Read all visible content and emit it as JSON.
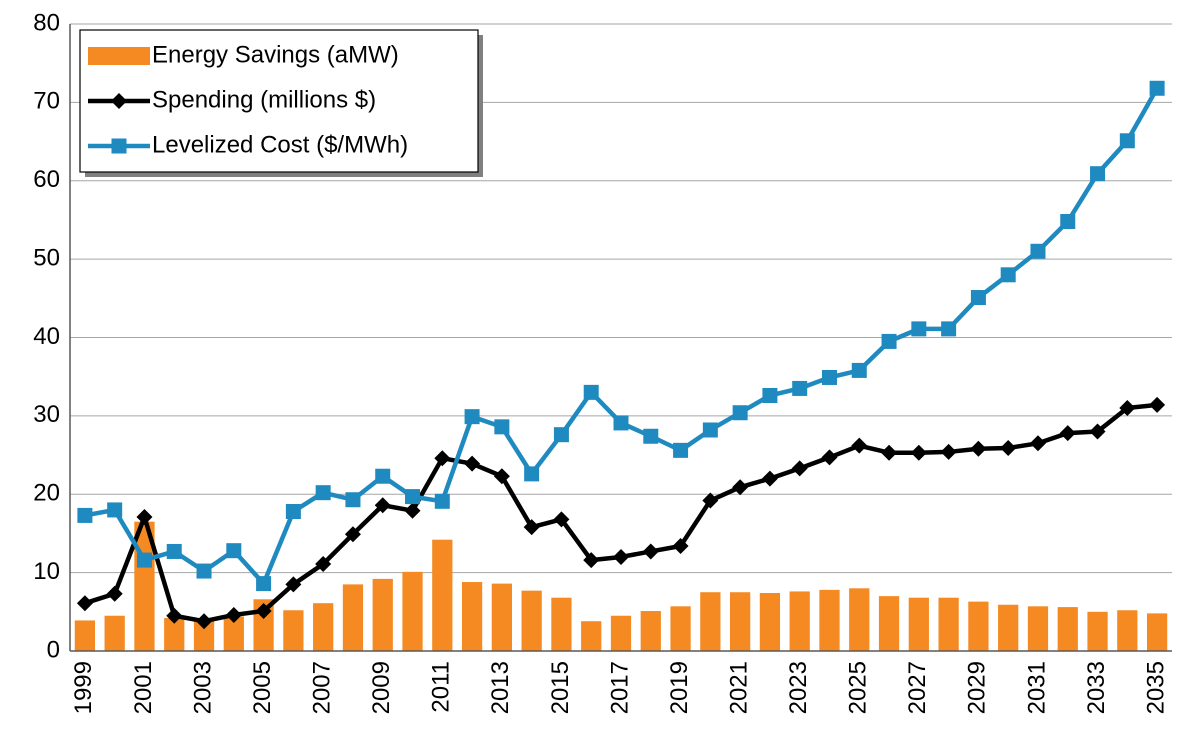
{
  "chart_data": {
    "type": "combo",
    "categories": [
      "1999",
      null,
      "2001",
      null,
      "2003",
      null,
      "2005",
      null,
      "2007",
      null,
      "2009",
      null,
      "2011",
      null,
      "2013",
      null,
      "2015",
      null,
      "2017",
      null,
      "2019",
      null,
      "2021",
      null,
      "2023",
      null,
      "2025",
      null,
      "2027",
      null,
      "2029",
      null,
      "2031",
      null,
      "2033",
      null,
      "2035"
    ],
    "series": [
      {
        "name": "Energy Savings (aMW)",
        "kind": "bar",
        "color": "#f58a23",
        "values": [
          3.9,
          4.5,
          16.5,
          4.2,
          3.8,
          4.4,
          6.6,
          5.2,
          6.1,
          8.5,
          9.2,
          10.1,
          14.2,
          8.8,
          8.6,
          7.7,
          6.8,
          3.8,
          4.5,
          5.1,
          5.7,
          7.5,
          7.5,
          7.4,
          7.6,
          7.8,
          8.0,
          7.0,
          6.8,
          6.8,
          6.3,
          5.9,
          5.7,
          5.6,
          5.0,
          5.2,
          4.8
        ]
      },
      {
        "name": "Spending (millions $)",
        "kind": "line",
        "marker": "diamond",
        "color": "#000000",
        "values": [
          6.1,
          7.3,
          17.1,
          4.5,
          3.8,
          4.6,
          5.1,
          8.5,
          11.1,
          14.9,
          18.6,
          17.9,
          24.6,
          23.9,
          22.3,
          15.8,
          16.8,
          11.6,
          12.0,
          12.7,
          13.4,
          19.2,
          20.9,
          22.0,
          23.3,
          24.7,
          26.2,
          25.3,
          25.3,
          25.4,
          25.8,
          25.9,
          26.5,
          27.8,
          28.0,
          31.0,
          31.4
        ]
      },
      {
        "name": "Levelized Cost ($/MWh)",
        "kind": "line",
        "marker": "square",
        "color": "#1f8ac0",
        "values": [
          17.3,
          18.0,
          11.6,
          12.7,
          10.2,
          12.8,
          8.6,
          17.8,
          20.2,
          19.3,
          22.3,
          19.7,
          19.1,
          29.9,
          28.6,
          22.6,
          27.6,
          33.0,
          29.1,
          27.4,
          25.6,
          28.2,
          30.4,
          32.6,
          33.5,
          34.9,
          35.8,
          39.5,
          41.1,
          41.1,
          45.1,
          48.0,
          51.0,
          54.8,
          60.9,
          65.1,
          71.8
        ]
      }
    ],
    "ylim": [
      0,
      80
    ],
    "yticks": [
      0,
      10,
      20,
      30,
      40,
      50,
      60,
      70,
      80
    ],
    "grid": true,
    "legend": "upper left"
  }
}
